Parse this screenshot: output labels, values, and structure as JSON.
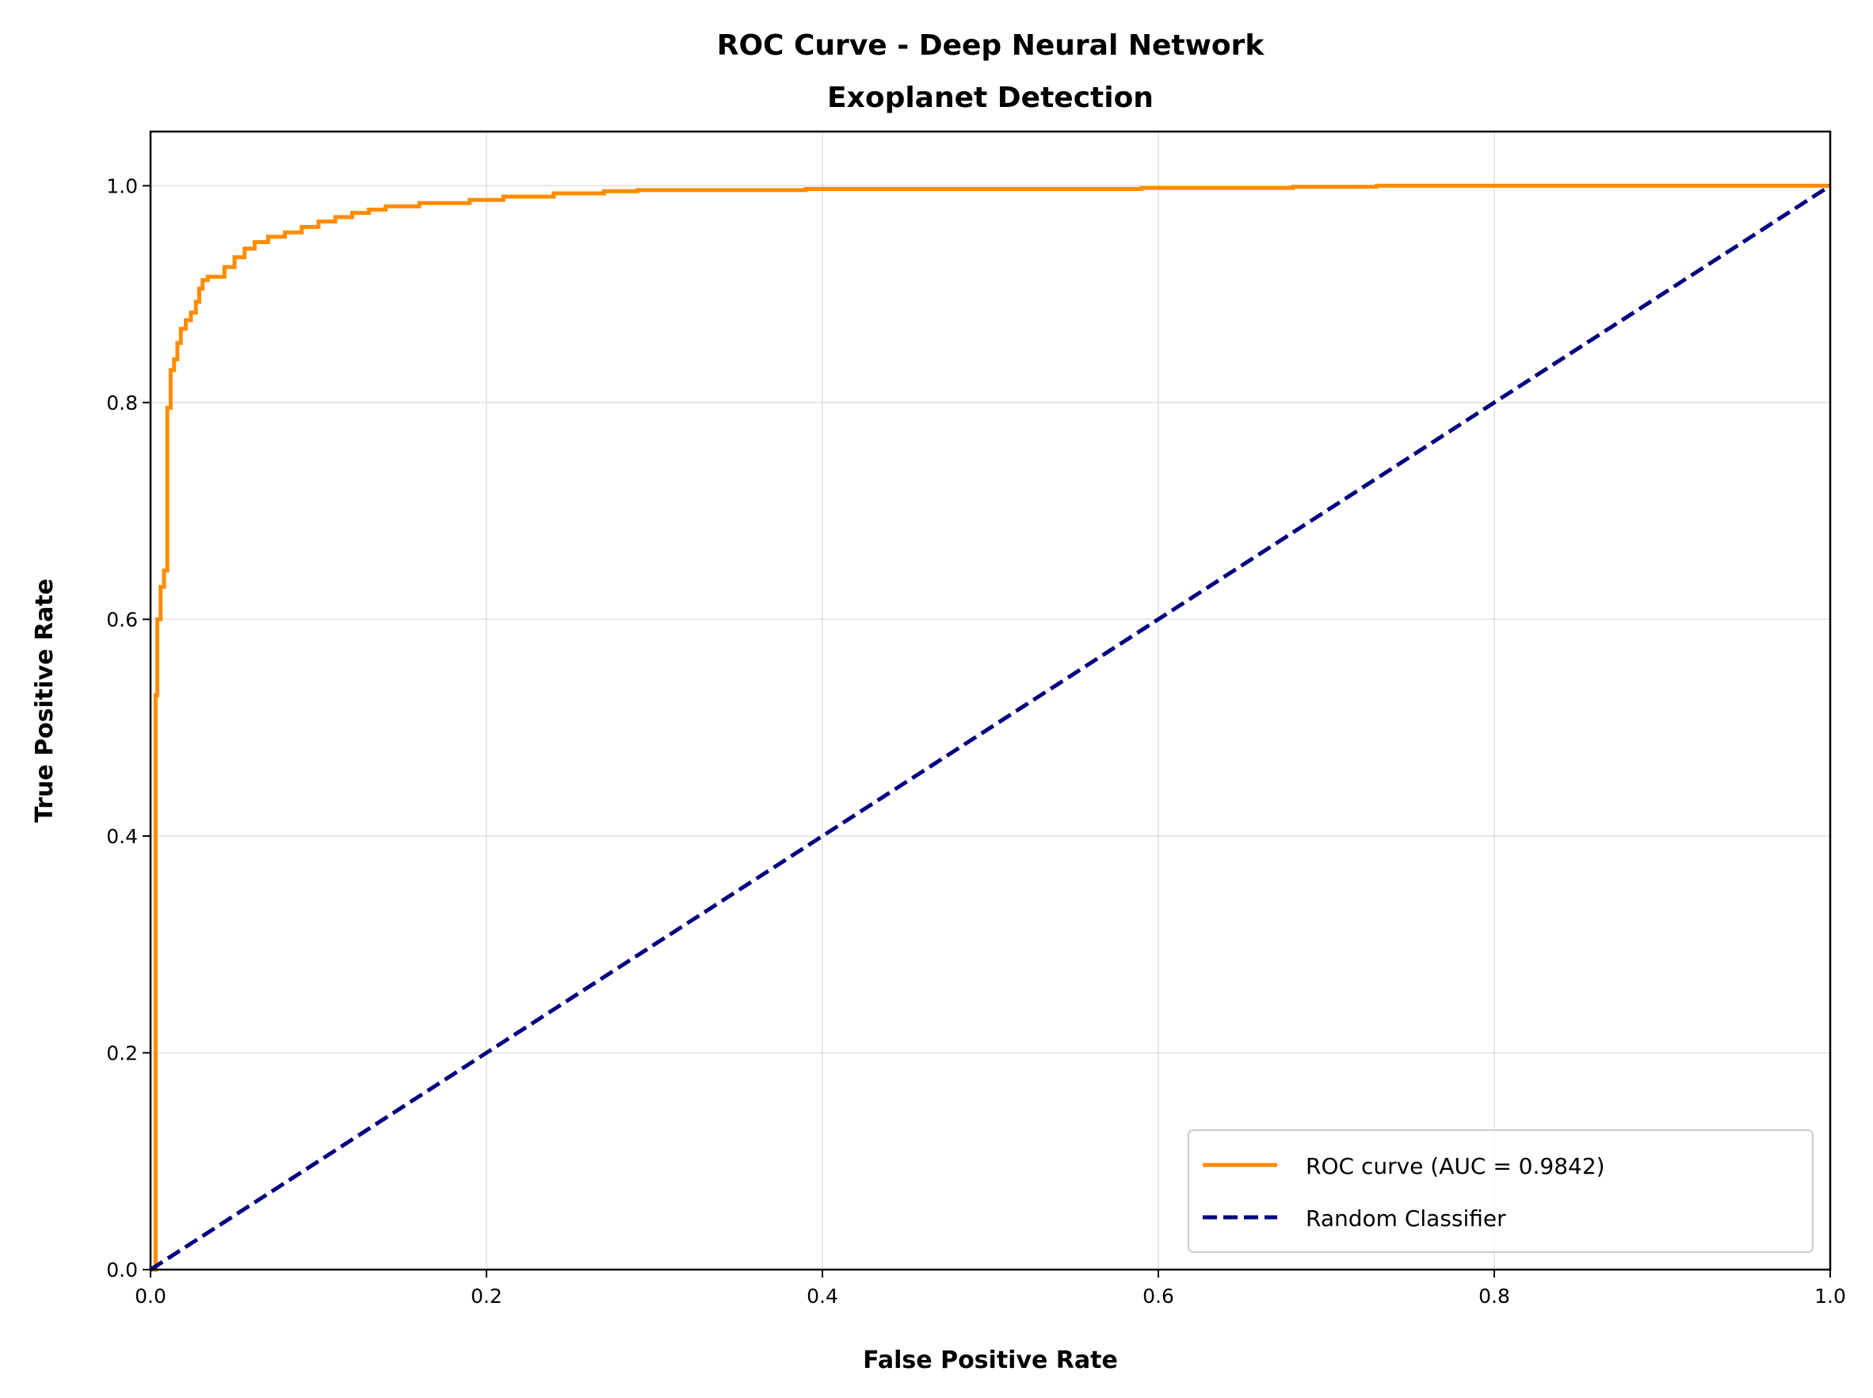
{
  "chart_data": {
    "type": "line",
    "title": [
      "ROC Curve - Deep Neural Network",
      "Exoplanet Detection"
    ],
    "xlabel": "False Positive Rate",
    "ylabel": "True Positive Rate",
    "xlim": [
      0.0,
      1.0
    ],
    "ylim": [
      0.0,
      1.05
    ],
    "xticks": [
      "0.0",
      "0.2",
      "0.4",
      "0.6",
      "0.8",
      "1.0"
    ],
    "yticks": [
      "0.0",
      "0.2",
      "0.4",
      "0.6",
      "0.8",
      "1.0"
    ],
    "grid": true,
    "legend_position": "lower-right",
    "series": [
      {
        "name": "ROC curve (AUC = 0.9842)",
        "color": "#ff8c00",
        "style": "solid",
        "x": [
          0.0,
          0.003,
          0.003,
          0.004,
          0.004,
          0.006,
          0.006,
          0.008,
          0.008,
          0.01,
          0.01,
          0.012,
          0.012,
          0.014,
          0.014,
          0.016,
          0.016,
          0.018,
          0.018,
          0.021,
          0.021,
          0.024,
          0.024,
          0.027,
          0.027,
          0.029,
          0.029,
          0.031,
          0.031,
          0.034,
          0.034,
          0.044,
          0.044,
          0.05,
          0.05,
          0.056,
          0.056,
          0.062,
          0.062,
          0.07,
          0.07,
          0.08,
          0.08,
          0.09,
          0.09,
          0.1,
          0.1,
          0.11,
          0.11,
          0.12,
          0.12,
          0.13,
          0.13,
          0.14,
          0.14,
          0.16,
          0.16,
          0.19,
          0.19,
          0.21,
          0.21,
          0.24,
          0.24,
          0.27,
          0.27,
          0.29,
          0.29,
          0.39,
          0.39,
          0.59,
          0.59,
          0.68,
          0.68,
          0.73,
          0.73,
          1.0
        ],
        "y": [
          0.0,
          0.0,
          0.53,
          0.53,
          0.6,
          0.6,
          0.63,
          0.63,
          0.645,
          0.645,
          0.795,
          0.795,
          0.83,
          0.83,
          0.84,
          0.84,
          0.855,
          0.855,
          0.868,
          0.868,
          0.876,
          0.876,
          0.883,
          0.883,
          0.893,
          0.893,
          0.905,
          0.905,
          0.913,
          0.913,
          0.916,
          0.916,
          0.925,
          0.925,
          0.934,
          0.934,
          0.942,
          0.942,
          0.948,
          0.948,
          0.953,
          0.953,
          0.957,
          0.957,
          0.962,
          0.962,
          0.967,
          0.967,
          0.971,
          0.971,
          0.975,
          0.975,
          0.978,
          0.978,
          0.981,
          0.981,
          0.984,
          0.984,
          0.987,
          0.987,
          0.99,
          0.99,
          0.993,
          0.993,
          0.995,
          0.995,
          0.996,
          0.996,
          0.997,
          0.997,
          0.998,
          0.998,
          0.999,
          0.999,
          1.0,
          1.0
        ]
      },
      {
        "name": "Random Classifier",
        "color": "#000080",
        "style": "dashed",
        "x": [
          0.0,
          1.0
        ],
        "y": [
          0.0,
          1.0
        ]
      }
    ]
  }
}
